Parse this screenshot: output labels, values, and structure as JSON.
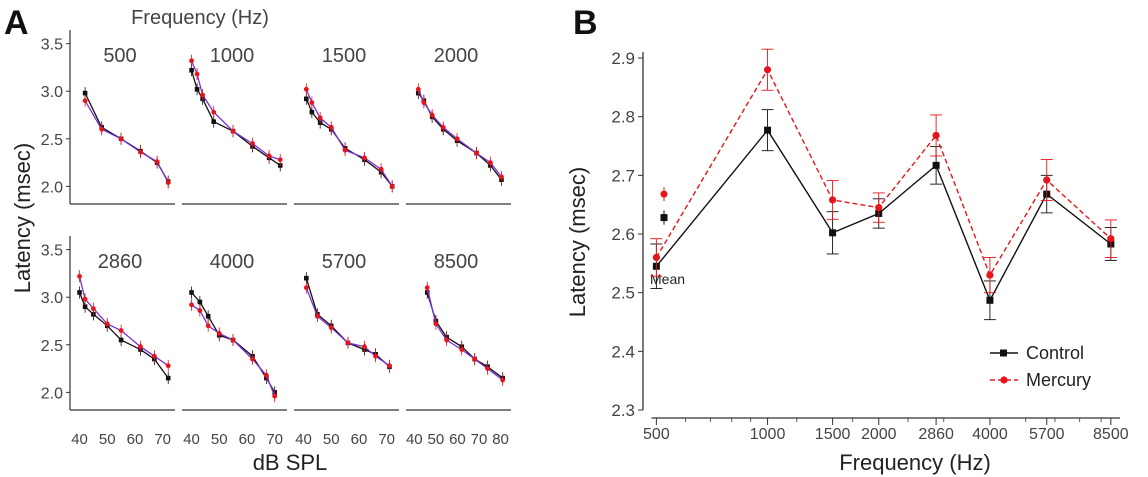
{
  "panel_labels": {
    "a": "A",
    "b": "B"
  },
  "colors": {
    "control": "#111111",
    "mercury": "#e8141b",
    "mercury_line_A": "#7b2fd6",
    "axis": "#333333",
    "text": "#444444"
  },
  "chart_data": [
    {
      "panel": "A",
      "type": "line",
      "title": "Frequency (Hz)",
      "xlabel": "dB SPL",
      "ylabel": "Latency (msec)",
      "yticks": [
        2.0,
        2.5,
        3.0,
        3.5
      ],
      "ylim": [
        1.92,
        3.58
      ],
      "legend": "none",
      "subplots": [
        {
          "label": "500",
          "xlim": [
            38,
            73
          ],
          "xticks": [
            40,
            50,
            60,
            70
          ],
          "series": [
            {
              "name": "Control",
              "x": [
                42,
                48,
                55,
                62,
                68,
                72
              ],
              "y": [
                2.98,
                2.62,
                2.5,
                2.37,
                2.25,
                2.05
              ]
            },
            {
              "name": "Mercury",
              "x": [
                42,
                48,
                55,
                62,
                68,
                72
              ],
              "y": [
                2.9,
                2.6,
                2.5,
                2.36,
                2.26,
                2.04
              ]
            }
          ]
        },
        {
          "label": "1000",
          "xlim": [
            38,
            73
          ],
          "xticks": [
            40,
            50,
            60,
            70
          ],
          "series": [
            {
              "name": "Control",
              "x": [
                40,
                42,
                44,
                48,
                55,
                62,
                68,
                72
              ],
              "y": [
                3.22,
                3.02,
                2.92,
                2.68,
                2.58,
                2.42,
                2.3,
                2.22
              ]
            },
            {
              "name": "Mercury",
              "x": [
                40,
                42,
                44,
                48,
                55,
                62,
                68,
                72
              ],
              "y": [
                3.32,
                3.18,
                2.96,
                2.78,
                2.58,
                2.45,
                2.32,
                2.28
              ]
            }
          ]
        },
        {
          "label": "1500",
          "xlim": [
            38,
            73
          ],
          "xticks": [
            40,
            50,
            60,
            70
          ],
          "series": [
            {
              "name": "Control",
              "x": [
                41,
                43,
                46,
                50,
                55,
                62,
                68,
                72
              ],
              "y": [
                2.92,
                2.78,
                2.67,
                2.6,
                2.4,
                2.28,
                2.15,
                2.0
              ]
            },
            {
              "name": "Mercury",
              "x": [
                41,
                43,
                46,
                50,
                55,
                62,
                68,
                72
              ],
              "y": [
                3.02,
                2.88,
                2.72,
                2.62,
                2.38,
                2.3,
                2.18,
                2.0
              ]
            }
          ]
        },
        {
          "label": "2000",
          "xlim": [
            38,
            73
          ],
          "xticks": [
            40,
            50,
            60,
            70
          ],
          "series": [
            {
              "name": "Control",
              "x": [
                41,
                43,
                46,
                50,
                55,
                62,
                67,
                71
              ],
              "y": [
                2.98,
                2.9,
                2.73,
                2.6,
                2.48,
                2.35,
                2.22,
                2.07
              ]
            },
            {
              "name": "Mercury",
              "x": [
                41,
                43,
                46,
                50,
                55,
                62,
                67,
                71
              ],
              "y": [
                3.02,
                2.88,
                2.75,
                2.62,
                2.5,
                2.35,
                2.25,
                2.1
              ]
            }
          ]
        },
        {
          "label": "2860",
          "xlim": [
            38,
            73
          ],
          "xticks": [
            40,
            50,
            60,
            70
          ],
          "series": [
            {
              "name": "Control",
              "x": [
                40,
                42,
                45,
                50,
                55,
                62,
                67,
                72
              ],
              "y": [
                3.05,
                2.9,
                2.82,
                2.7,
                2.55,
                2.45,
                2.35,
                2.15
              ]
            },
            {
              "name": "Mercury",
              "x": [
                40,
                42,
                45,
                50,
                55,
                62,
                67,
                72
              ],
              "y": [
                3.22,
                2.98,
                2.88,
                2.72,
                2.65,
                2.48,
                2.38,
                2.28
              ]
            }
          ]
        },
        {
          "label": "4000",
          "xlim": [
            38,
            73
          ],
          "xticks": [
            40,
            50,
            60,
            70
          ],
          "series": [
            {
              "name": "Control",
              "x": [
                40,
                43,
                46,
                50,
                55,
                62,
                67,
                70
              ],
              "y": [
                3.05,
                2.95,
                2.8,
                2.6,
                2.55,
                2.38,
                2.15,
                2.0
              ]
            },
            {
              "name": "Mercury",
              "x": [
                40,
                43,
                46,
                50,
                55,
                62,
                67,
                70
              ],
              "y": [
                2.92,
                2.86,
                2.7,
                2.62,
                2.55,
                2.35,
                2.18,
                1.96
              ]
            }
          ]
        },
        {
          "label": "5700",
          "xlim": [
            38,
            73
          ],
          "xticks": [
            40,
            50,
            60,
            70
          ],
          "series": [
            {
              "name": "Control",
              "x": [
                41,
                45,
                50,
                56,
                62,
                66,
                71
              ],
              "y": [
                3.2,
                2.82,
                2.7,
                2.52,
                2.45,
                2.4,
                2.27
              ]
            },
            {
              "name": "Mercury",
              "x": [
                41,
                45,
                50,
                56,
                62,
                66,
                71
              ],
              "y": [
                3.1,
                2.8,
                2.68,
                2.52,
                2.48,
                2.38,
                2.28
              ]
            }
          ]
        },
        {
          "label": "8500",
          "xlim": [
            38,
            83
          ],
          "xticks": [
            40,
            50,
            60,
            70,
            80
          ],
          "series": [
            {
              "name": "Control",
              "x": [
                46,
                50,
                55,
                62,
                68,
                74,
                81
              ],
              "y": [
                3.05,
                2.75,
                2.58,
                2.48,
                2.35,
                2.27,
                2.15
              ]
            },
            {
              "name": "Mercury",
              "x": [
                46,
                50,
                55,
                62,
                68,
                74,
                81
              ],
              "y": [
                3.1,
                2.72,
                2.55,
                2.45,
                2.35,
                2.25,
                2.13
              ]
            }
          ]
        }
      ]
    },
    {
      "panel": "B",
      "type": "line",
      "xlabel": "Frequency (Hz)",
      "ylabel": "Latency (msec)",
      "x_scale": "log",
      "xticks": [
        500,
        1000,
        1500,
        2000,
        2860,
        4000,
        5700,
        8500
      ],
      "xlim": [
        460,
        9000
      ],
      "ylim": [
        2.3,
        2.9
      ],
      "yticks": [
        2.3,
        2.4,
        2.5,
        2.6,
        2.7,
        2.8,
        2.9
      ],
      "legend": "bottom-right",
      "mean_label": "Mean",
      "mean": {
        "Control": {
          "y": 2.628,
          "err": 0.012
        },
        "Mercury": {
          "y": 2.668,
          "err": 0.012
        }
      },
      "categories": [
        500,
        1000,
        1500,
        2000,
        2860,
        4000,
        5700,
        8500
      ],
      "series": [
        {
          "name": "Control",
          "style": "solid",
          "marker": "square",
          "values": [
            2.545,
            2.777,
            2.602,
            2.635,
            2.717,
            2.487,
            2.668,
            2.583
          ],
          "errors": [
            0.038,
            0.035,
            0.036,
            0.025,
            0.032,
            0.033,
            0.032,
            0.028
          ]
        },
        {
          "name": "Mercury",
          "style": "dashed",
          "marker": "circle",
          "values": [
            2.56,
            2.88,
            2.658,
            2.645,
            2.768,
            2.53,
            2.692,
            2.592
          ],
          "errors": [
            0.032,
            0.035,
            0.033,
            0.025,
            0.035,
            0.03,
            0.035,
            0.032
          ]
        }
      ]
    }
  ]
}
